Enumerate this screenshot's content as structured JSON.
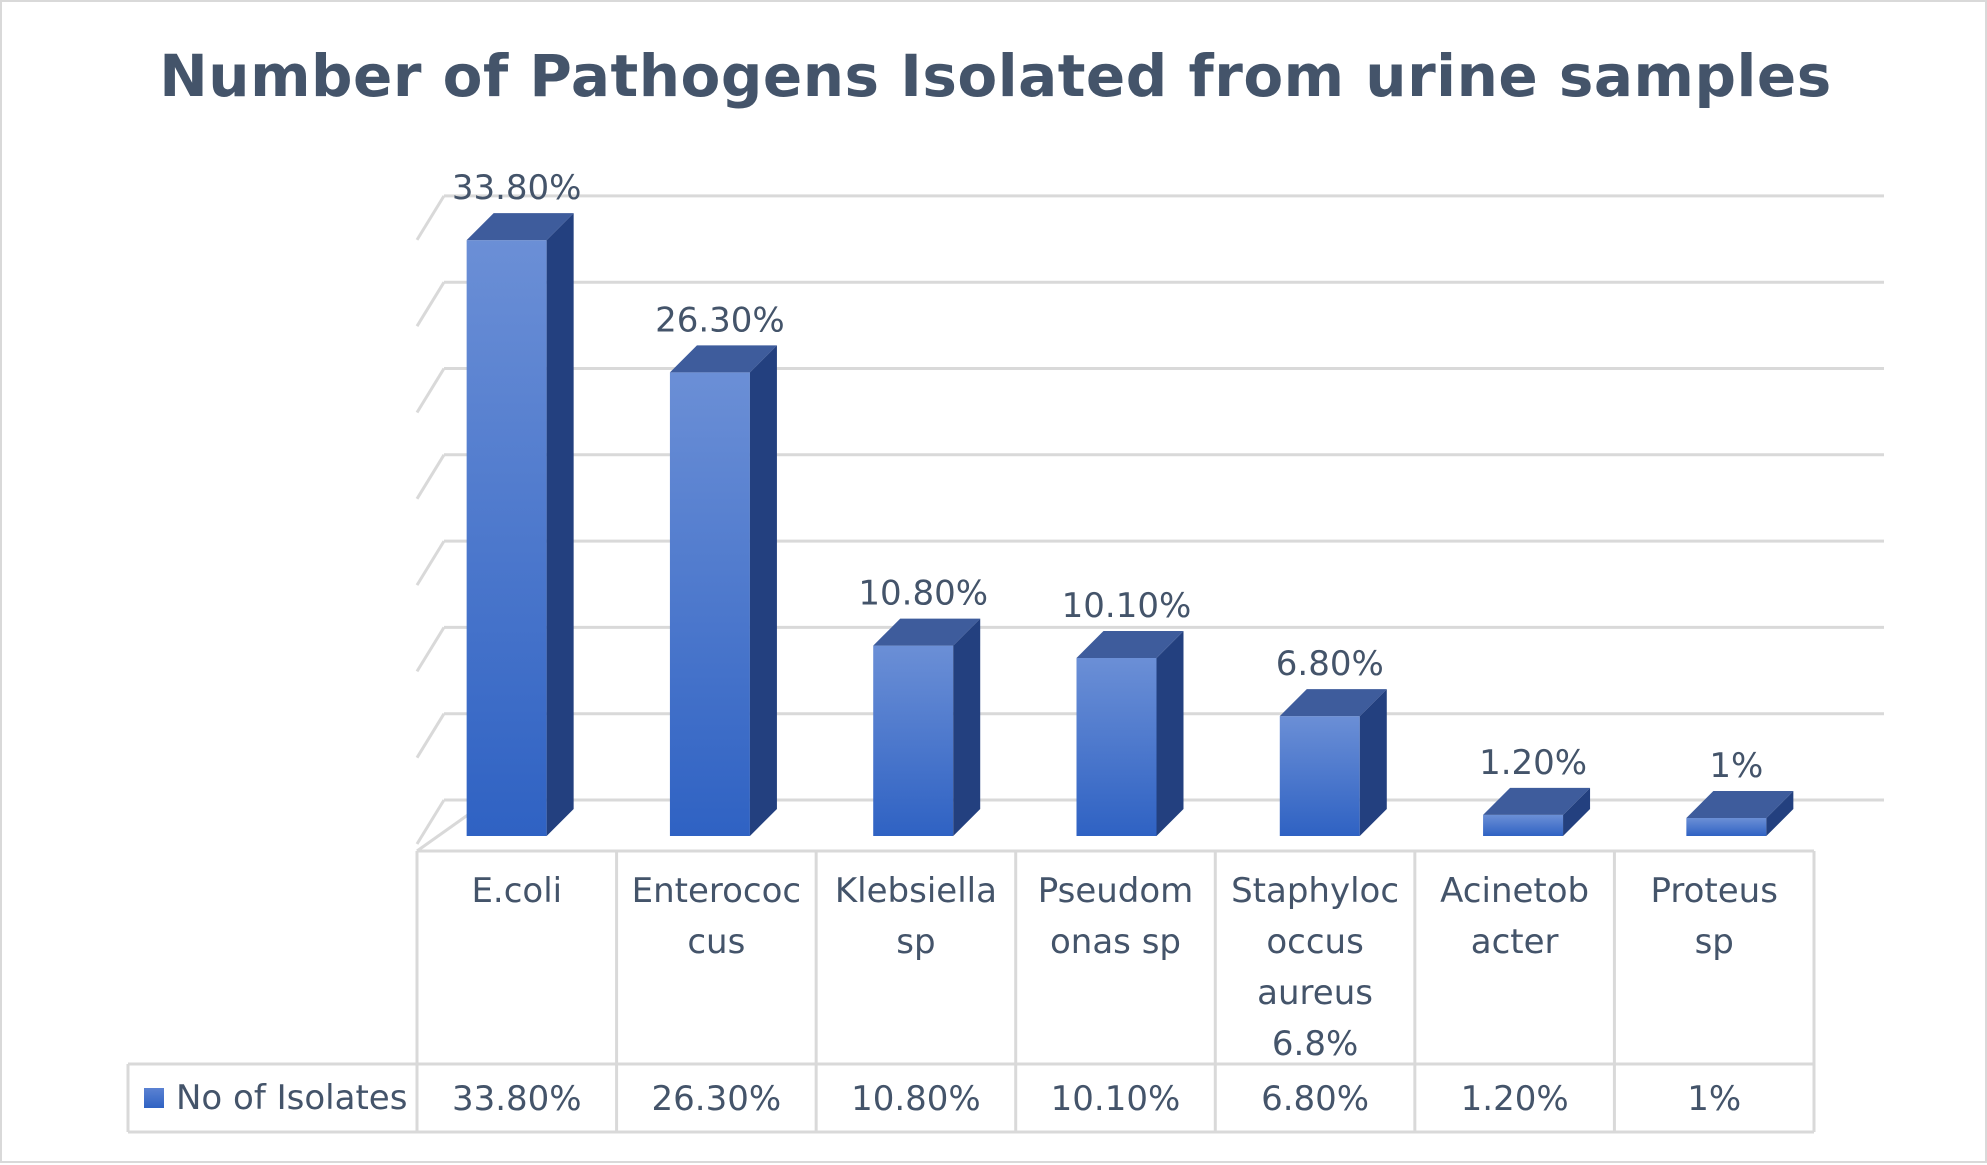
{
  "chart_data": {
    "type": "bar",
    "title": "Number of Pathogens Isolated from urine samples",
    "categories": [
      [
        "E.coli"
      ],
      [
        "Enterococ",
        "cus"
      ],
      [
        "Klebsiella",
        "sp"
      ],
      [
        "Pseudom",
        "onas sp"
      ],
      [
        "Staphyloc",
        "occus",
        "aureus",
        "6.8%"
      ],
      [
        "Acinetob",
        "acter"
      ],
      [
        "Proteus",
        "sp"
      ]
    ],
    "series": [
      {
        "name": "No of Isolates",
        "values": [
          33.8,
          26.3,
          10.8,
          10.1,
          6.8,
          1.2,
          1.0
        ],
        "labels": [
          "33.80%",
          "26.30%",
          "10.80%",
          "10.10%",
          "6.80%",
          "1.20%",
          "1%"
        ],
        "color": "#4472c4"
      }
    ],
    "ylim": [
      0,
      35
    ],
    "grid": true,
    "data_table": true,
    "legend_in_table": true,
    "colors": {
      "bar_front_top": "#6b8fd6",
      "bar_front_bottom": "#2f62c3",
      "bar_side": "#23407f",
      "bar_top": "#3e5c9c",
      "gridline": "#d9d9d9",
      "text": "#44546a"
    }
  }
}
